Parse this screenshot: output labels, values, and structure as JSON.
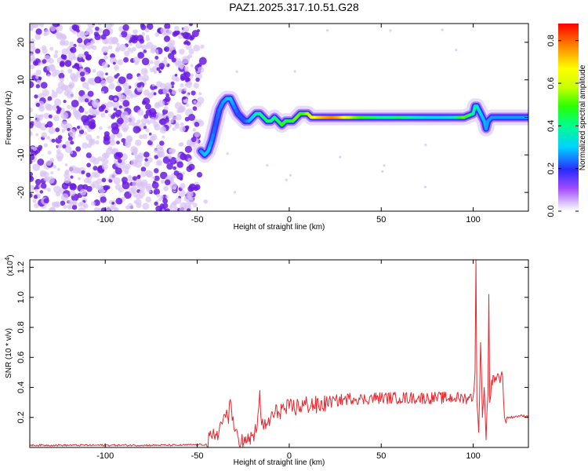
{
  "title": "PAZ1.2025.317.10.51.G28",
  "colors": {
    "snr_line": "#e8262c",
    "dots_light": "#d9c3f5",
    "dots_dark": "#6a1be0"
  },
  "chart_data": [
    {
      "type": "heatmap",
      "name": "spectrogram",
      "xlabel": "Height of straight line (km)",
      "ylabel": "Frequency (Hz)",
      "xlim": [
        -141,
        130
      ],
      "ylim": [
        -25,
        25
      ],
      "x_ticks": [
        -100,
        -50,
        0,
        50,
        100
      ],
      "y_ticks": [
        -20,
        -10,
        0,
        10,
        20
      ],
      "colorbar": {
        "label": "Normalized spectral amplitude",
        "range": [
          0,
          0.88
        ],
        "ticks": [
          "0.0",
          "0.2",
          "0.4",
          "0.6",
          "0.8"
        ]
      },
      "ridge_frequency_hz": {
        "x": [
          -48,
          -46,
          -44,
          -42,
          -40,
          -38,
          -36,
          -34,
          -32,
          -30,
          -28,
          -26,
          -24,
          -22,
          -20,
          -18,
          -16,
          -14,
          -12,
          -10,
          -8,
          -6,
          -4,
          -2,
          0,
          2,
          4,
          6,
          8,
          10,
          12,
          14,
          16,
          18,
          20,
          22,
          24,
          26,
          28,
          30,
          35,
          40,
          45,
          50,
          55,
          60,
          65,
          70,
          75,
          80,
          85,
          90,
          95,
          100,
          101,
          102,
          103,
          104,
          105,
          106,
          107,
          108,
          110,
          115,
          120,
          125,
          130
        ],
        "y": [
          -9,
          -10,
          -9,
          -6,
          -2,
          2,
          4,
          5,
          5,
          3,
          1,
          0,
          -1,
          -1,
          0,
          1,
          1,
          0,
          -1,
          -1,
          0,
          -1,
          -2,
          -1,
          -1,
          -1,
          0,
          1,
          1,
          1,
          0,
          0,
          0,
          0,
          0,
          0,
          0,
          0,
          0,
          0,
          0,
          0,
          0,
          0,
          0,
          0,
          0,
          0,
          0,
          0,
          0,
          0,
          0,
          1,
          3,
          3,
          2,
          1,
          0,
          -1,
          -3,
          -1,
          0,
          0,
          0,
          0,
          0
        ]
      },
      "ridge_amplitude": {
        "x": [
          -48,
          -44,
          -40,
          -36,
          -32,
          -28,
          -24,
          -20,
          -16,
          -12,
          -8,
          -4,
          0,
          4,
          8,
          12,
          16,
          20,
          24,
          28,
          32,
          36,
          40,
          45,
          50,
          55,
          60,
          70,
          80,
          90,
          95,
          100,
          104,
          108,
          112,
          120,
          130
        ],
        "v": [
          0.3,
          0.35,
          0.25,
          0.3,
          0.35,
          0.25,
          0.25,
          0.35,
          0.45,
          0.5,
          0.45,
          0.55,
          0.5,
          0.6,
          0.55,
          0.7,
          0.8,
          0.85,
          0.88,
          0.82,
          0.7,
          0.6,
          0.55,
          0.5,
          0.45,
          0.45,
          0.5,
          0.4,
          0.35,
          0.4,
          0.6,
          0.45,
          0.35,
          0.3,
          0.3,
          0.3,
          0.3
        ]
      }
    },
    {
      "type": "line",
      "name": "snr",
      "xlabel": "Height of straight line (km)",
      "ylabel": "SNR (10 * v/v)",
      "y_scale_note": "(x10",
      "y_scale_exp": "4",
      "y_scale_close": ")",
      "xlim": [
        -141,
        130
      ],
      "ylim": [
        0,
        1.25
      ],
      "x_ticks": [
        -100,
        -50,
        0,
        50,
        100
      ],
      "y_ticks": [
        0.2,
        0.4,
        0.6,
        0.8,
        1.0,
        1.2
      ],
      "y_tick_labels": [
        "0.2",
        "0.4",
        "0.6",
        "0.8",
        "1.0",
        "1.2"
      ],
      "series": [
        {
          "x": [
            -141,
            -120,
            -100,
            -80,
            -60,
            -45,
            -42,
            -40,
            -38,
            -36,
            -35,
            -34,
            -33,
            -32,
            -31,
            -30,
            -29,
            -28,
            -26,
            -24,
            -22,
            -20,
            -18,
            -17,
            -16,
            -15,
            -14,
            -12,
            -10,
            -8,
            -6,
            -4,
            -2,
            0,
            4,
            8,
            12,
            16,
            20,
            25,
            30,
            35,
            40,
            45,
            50,
            60,
            70,
            80,
            90,
            95,
            98,
            100,
            101,
            101.5,
            102,
            103,
            104,
            105,
            106,
            107,
            108,
            108.5,
            109,
            110,
            112,
            115,
            116,
            117,
            120,
            125,
            130
          ],
          "y": [
            0.015,
            0.015,
            0.015,
            0.015,
            0.015,
            0.02,
            0.06,
            0.09,
            0.12,
            0.18,
            0.22,
            0.25,
            0.16,
            0.32,
            0.18,
            0.12,
            0.12,
            0.08,
            0.04,
            0.03,
            0.04,
            0.08,
            0.1,
            0.22,
            0.38,
            0.15,
            0.12,
            0.15,
            0.2,
            0.22,
            0.24,
            0.26,
            0.25,
            0.26,
            0.27,
            0.28,
            0.29,
            0.27,
            0.3,
            0.31,
            0.32,
            0.33,
            0.32,
            0.33,
            0.33,
            0.33,
            0.33,
            0.33,
            0.33,
            0.33,
            0.33,
            0.34,
            0.5,
            1.25,
            0.3,
            0.1,
            0.7,
            0.2,
            0.4,
            0.05,
            0.35,
            1.02,
            0.3,
            0.45,
            0.47,
            0.47,
            0.47,
            0.2,
            0.2,
            0.21,
            0.21
          ]
        }
      ]
    }
  ]
}
